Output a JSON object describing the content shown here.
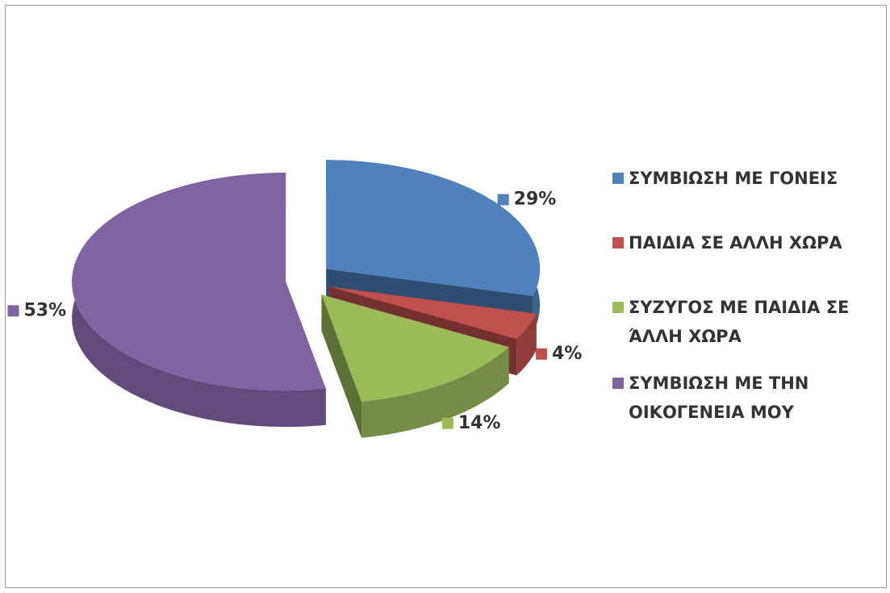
{
  "chart_data": {
    "type": "pie",
    "categories": [
      "ΣΥΜΒΙΩΣΗ ΜΕ ΓΟΝΕΙΣ",
      "ΠΑΙΔΙΑ ΣΕ ΑΛΛΗ ΧΩΡΑ",
      "ΣΥΖΥΓΟΣ ΜΕ ΠΑΙΔΙΑ ΣΕ ΆΛΛΗ ΧΩΡΑ",
      "ΣΥΜΒΙΩΣΗ ΜΕ ΤΗΝ ΟΙΚΟΓΕΝΕΙΑ ΜΟΥ"
    ],
    "values": [
      29,
      4,
      14,
      53
    ],
    "value_labels": [
      "29%",
      "4%",
      "14%",
      "53%"
    ],
    "colors": [
      "#4f81bd",
      "#c0504d",
      "#9bbb59",
      "#8064a2"
    ],
    "legend": "right"
  }
}
